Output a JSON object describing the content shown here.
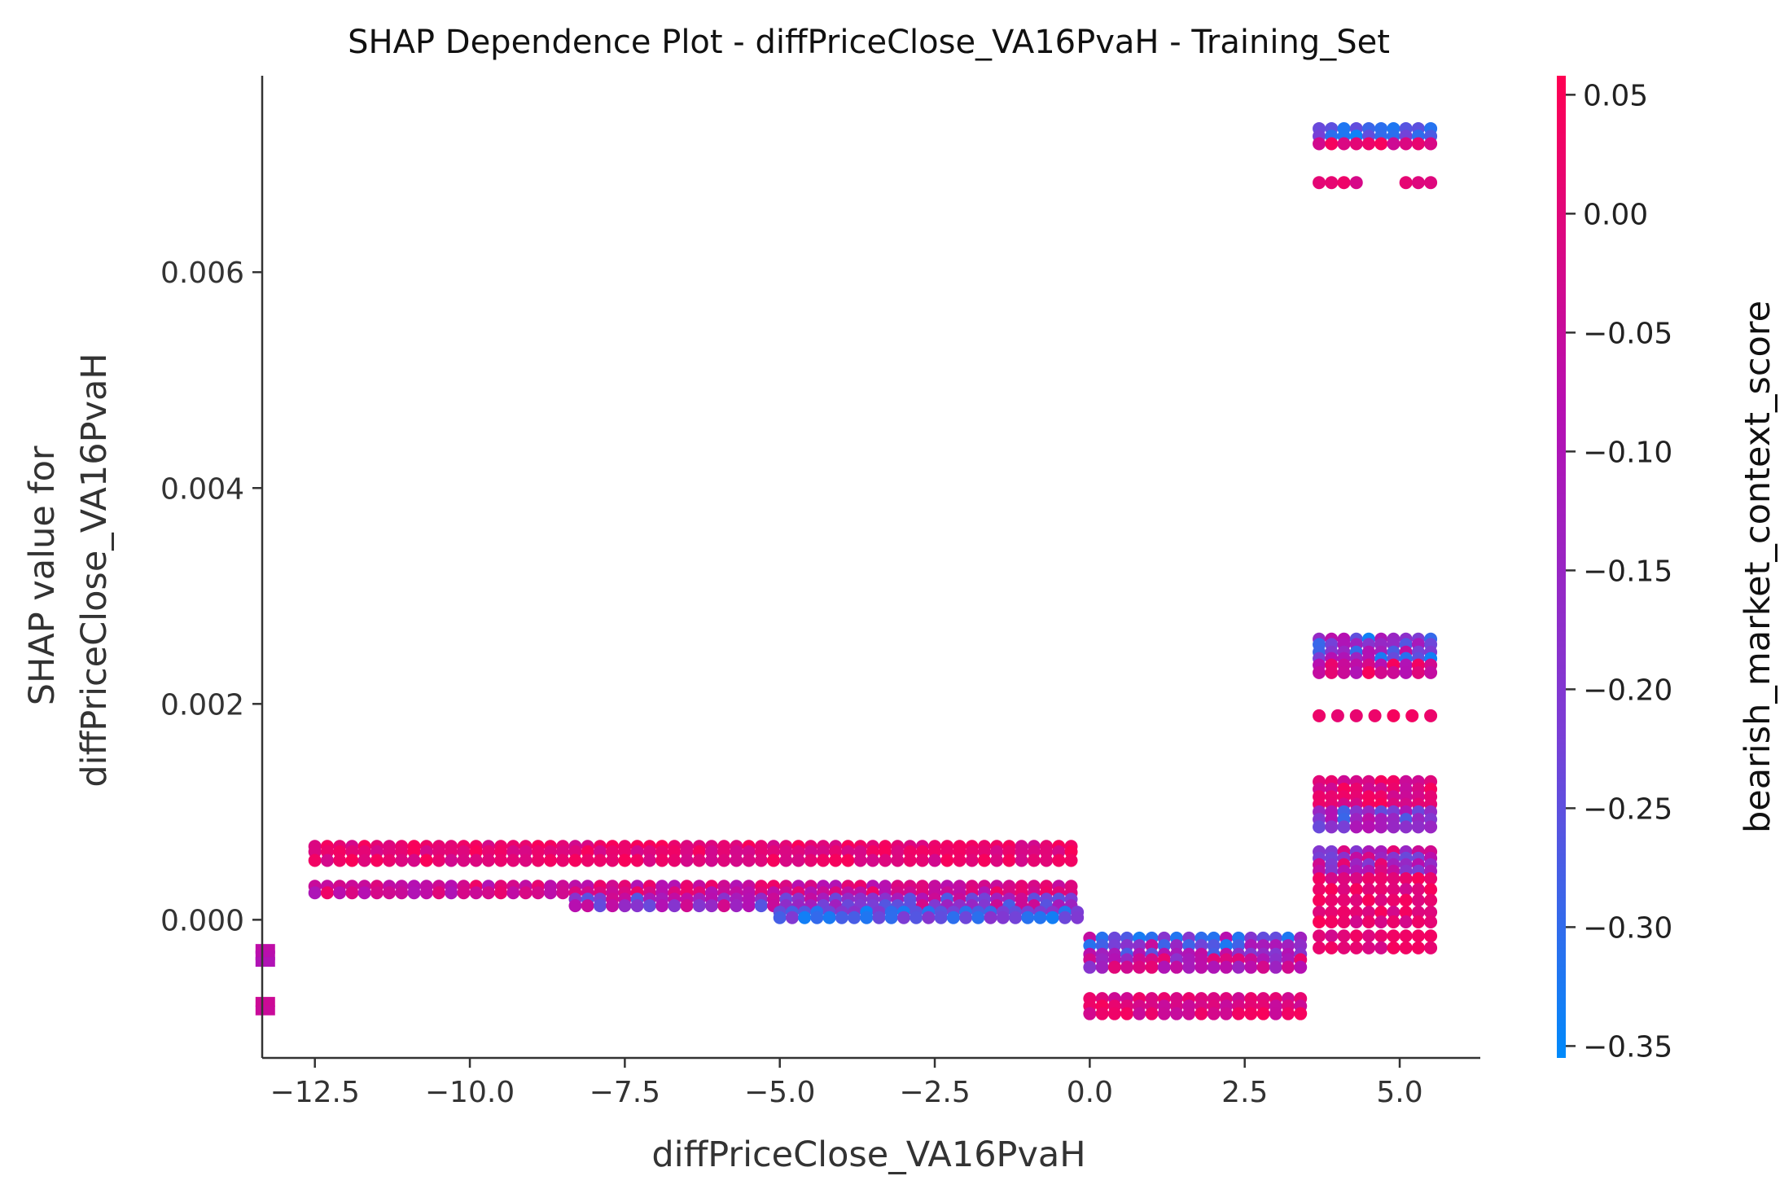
{
  "chart_data": {
    "type": "scatter",
    "title": "SHAP Dependence Plot - diffPriceClose_VA16PvaH - Training_Set",
    "xlabel": "diffPriceClose_VA16PvaH",
    "ylabel_lines": [
      "SHAP value for",
      "diffPriceClose_VA16PvaH"
    ],
    "xlim": [
      -13.35,
      6.3
    ],
    "ylim": [
      -0.00128,
      0.00782
    ],
    "x_ticks": [
      -12.5,
      -10.0,
      -7.5,
      -5.0,
      -2.5,
      0.0,
      2.5,
      5.0
    ],
    "x_tick_labels": [
      "−12.5",
      "−10.0",
      "−7.5",
      "−5.0",
      "−2.5",
      "0.0",
      "2.5",
      "5.0"
    ],
    "y_ticks": [
      0.0,
      0.002,
      0.004,
      0.006
    ],
    "y_tick_labels": [
      "0.000",
      "0.002",
      "0.004",
      "0.006"
    ],
    "colorbar": {
      "label": "bearish_market_context_score",
      "range": [
        -0.355,
        0.058
      ],
      "ticks": [
        0.05,
        0.0,
        -0.05,
        -0.1,
        -0.15,
        -0.2,
        -0.25,
        -0.3,
        -0.35
      ],
      "tick_labels": [
        "0.05",
        "0.00",
        "−0.05",
        "−0.10",
        "−0.15",
        "−0.20",
        "−0.25",
        "−0.30",
        "−0.35"
      ],
      "colormap": [
        "#008afb",
        "#7a3ed6",
        "#b60fb2",
        "#ff0052"
      ]
    },
    "grid": false,
    "legend": "none",
    "clusters": [
      {
        "x_start": -13.3,
        "x_end": -13.3,
        "x_step": 0.2,
        "y": [
          -0.00027,
          -0.00033,
          -0.00039,
          -0.00076,
          -0.00084
        ],
        "c_hi": -0.02,
        "c_lo": -0.12,
        "marker": "square"
      },
      {
        "x_start": -12.5,
        "x_end": -0.2,
        "x_step": 0.2,
        "y": [
          0.00068,
          0.00063,
          0.00055
        ],
        "c_hi": 0.05,
        "c_lo": -0.03
      },
      {
        "x_start": -12.5,
        "x_end": -0.2,
        "x_step": 0.2,
        "y": [
          0.00031,
          0.00025
        ],
        "c_hi": 0.03,
        "c_lo": -0.1
      },
      {
        "x_start": -8.3,
        "x_end": -0.2,
        "x_step": 0.2,
        "y": [
          0.00019,
          0.00013
        ],
        "c_hi": -0.02,
        "c_lo": -0.28
      },
      {
        "x_start": -5.0,
        "x_end": -0.2,
        "x_step": 0.2,
        "y": [
          7e-05,
          2e-05
        ],
        "c_hi": -0.18,
        "c_lo": -0.34
      },
      {
        "x_start": 0.0,
        "x_end": 3.5,
        "x_step": 0.2,
        "y": [
          -0.00017,
          -0.00024,
          -0.00032
        ],
        "c_hi": -0.05,
        "c_lo": -0.33
      },
      {
        "x_start": 0.0,
        "x_end": 3.5,
        "x_step": 0.2,
        "y": [
          -0.00037,
          -0.00044
        ],
        "c_hi": 0.02,
        "c_lo": -0.2
      },
      {
        "x_start": 0.0,
        "x_end": 3.5,
        "x_step": 0.2,
        "y": [
          -0.00073,
          -0.0008,
          -0.00087
        ],
        "c_hi": 0.05,
        "c_lo": -0.05
      },
      {
        "x_start": 3.7,
        "x_end": 5.5,
        "x_step": 0.2,
        "y": [
          0.00733,
          0.00726
        ],
        "c_hi": -0.22,
        "c_lo": -0.34
      },
      {
        "x_start": 3.7,
        "x_end": 5.5,
        "x_step": 0.2,
        "y": [
          0.00719
        ],
        "c_hi": 0.05,
        "c_lo": -0.05
      },
      {
        "x_start": 3.7,
        "x_end": 5.5,
        "x_step": 0.2,
        "y": [
          0.00683
        ],
        "c_hi": 0.05,
        "c_lo": -0.02,
        "skip": [
          4,
          5,
          6
        ]
      },
      {
        "x_start": 3.7,
        "x_end": 5.5,
        "x_step": 0.2,
        "y": [
          0.0026,
          0.00255,
          0.00248,
          0.00242
        ],
        "c_hi": -0.05,
        "c_lo": -0.34
      },
      {
        "x_start": 3.7,
        "x_end": 5.5,
        "x_step": 0.2,
        "y": [
          0.00236,
          0.00229
        ],
        "c_hi": 0.05,
        "c_lo": -0.1
      },
      {
        "x_start": 3.7,
        "x_end": 5.5,
        "x_step": 0.3,
        "y": [
          0.00189
        ],
        "c_hi": 0.05,
        "c_lo": 0.0
      },
      {
        "x_start": 3.7,
        "x_end": 5.5,
        "x_step": 0.2,
        "y": [
          0.00128,
          0.00121,
          0.00114,
          0.00107
        ],
        "c_hi": 0.05,
        "c_lo": -0.05
      },
      {
        "x_start": 3.7,
        "x_end": 5.5,
        "x_step": 0.2,
        "y": [
          0.001,
          0.00093,
          0.00086
        ],
        "c_hi": -0.05,
        "c_lo": -0.3
      },
      {
        "x_start": 3.7,
        "x_end": 5.5,
        "x_step": 0.2,
        "y": [
          0.00063,
          0.00057,
          0.00051,
          0.00045
        ],
        "c_hi": 0.02,
        "c_lo": -0.25
      },
      {
        "x_start": 3.7,
        "x_end": 5.5,
        "x_step": 0.2,
        "y": [
          0.00038,
          0.00028,
          0.00018,
          7e-05,
          -2e-05,
          -0.00015,
          -0.00026
        ],
        "c_hi": 0.05,
        "c_lo": -0.03
      }
    ]
  }
}
